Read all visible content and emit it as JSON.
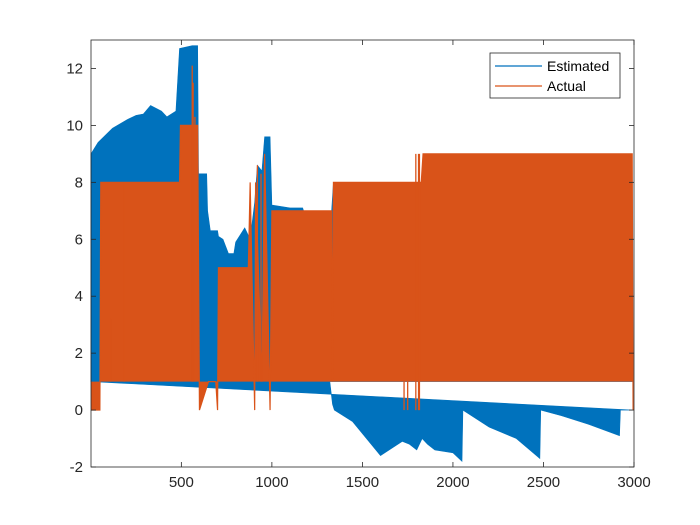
{
  "chart_data": {
    "type": "area",
    "title": "",
    "xlabel": "",
    "ylabel": "",
    "xlim": [
      1,
      3000
    ],
    "ylim": [
      -2,
      13
    ],
    "x_ticks": [
      500,
      1000,
      1500,
      2000,
      2500,
      3000
    ],
    "y_ticks": [
      -2,
      0,
      2,
      4,
      6,
      8,
      10,
      12
    ],
    "grid": false,
    "legend": {
      "position": "top-right"
    },
    "colors": {
      "estimated": "#0072BD",
      "actual": "#D95319",
      "axis": "#262626"
    },
    "series": [
      {
        "name": "Estimated",
        "baseline": [
          [
            1,
            1
          ],
          [
            2990,
            1
          ]
        ],
        "upper": [
          [
            1,
            9.0
          ],
          [
            40,
            9.4
          ],
          [
            120,
            9.9
          ],
          [
            200,
            10.2
          ],
          [
            250,
            10.35
          ],
          [
            290,
            10.4
          ],
          [
            330,
            10.7
          ],
          [
            390,
            10.5
          ],
          [
            420,
            10.3
          ],
          [
            470,
            10.5
          ],
          [
            490,
            12.7
          ],
          [
            560,
            12.8
          ],
          [
            590,
            12.8
          ],
          [
            595,
            8.3
          ],
          [
            640,
            8.3
          ],
          [
            645,
            7.0
          ],
          [
            660,
            6.3
          ],
          [
            700,
            6.3
          ],
          [
            705,
            6.1
          ],
          [
            730,
            6.0
          ],
          [
            760,
            5.5
          ],
          [
            790,
            5.5
          ],
          [
            800,
            5.9
          ],
          [
            850,
            6.4
          ],
          [
            880,
            6.0
          ],
          [
            905,
            7.3
          ],
          [
            920,
            8.6
          ],
          [
            945,
            8.4
          ],
          [
            960,
            9.6
          ],
          [
            990,
            9.6
          ],
          [
            1000,
            7.2
          ],
          [
            1100,
            7.1
          ],
          [
            1170,
            7.1
          ],
          [
            1175,
            7.0
          ],
          [
            1330,
            7.0
          ],
          [
            1340,
            8.0
          ],
          [
            2990,
            8.0
          ],
          [
            2991,
            1
          ]
        ],
        "lower": [
          [
            1,
            1
          ],
          [
            1320,
            1
          ],
          [
            1335,
            0.2
          ],
          [
            1345,
            0
          ],
          [
            1445,
            -0.4
          ],
          [
            1600,
            -1.6
          ],
          [
            1720,
            -1.1
          ],
          [
            1760,
            -1.2
          ],
          [
            1800,
            -1.4
          ],
          [
            1830,
            -1.0
          ],
          [
            1860,
            -1.2
          ],
          [
            1900,
            -1.4
          ],
          [
            2000,
            -1.5
          ],
          [
            2050,
            -1.8
          ],
          [
            2055,
            0
          ],
          [
            2200,
            -0.6
          ],
          [
            2350,
            -1.0
          ],
          [
            2480,
            -1.7
          ],
          [
            2485,
            0
          ],
          [
            2600,
            -0.2
          ],
          [
            2750,
            -0.5
          ],
          [
            2920,
            -0.9
          ],
          [
            2925,
            0
          ],
          [
            2990,
            0
          ]
        ]
      },
      {
        "name": "Actual",
        "steps": [
          [
            1,
            0
          ],
          [
            50,
            0
          ],
          [
            55,
            8
          ],
          [
            490,
            8
          ],
          [
            495,
            10
          ],
          [
            590,
            10
          ],
          [
            600,
            0
          ],
          [
            650,
            1
          ],
          [
            690,
            1
          ],
          [
            700,
            0
          ],
          [
            705,
            5
          ],
          [
            870,
            5
          ],
          [
            880,
            8
          ],
          [
            905,
            0
          ],
          [
            910,
            8
          ],
          [
            945,
            1
          ],
          [
            960,
            9
          ],
          [
            990,
            0
          ],
          [
            1000,
            7
          ],
          [
            1330,
            7
          ],
          [
            1335,
            1
          ],
          [
            1340,
            8
          ],
          [
            1825,
            8
          ],
          [
            1835,
            9
          ],
          [
            2990,
            9
          ],
          [
            2995,
            0
          ]
        ],
        "fill_base": 1,
        "spikes": [
          [
            110,
            1,
            3.2
          ],
          [
            185,
            1,
            8
          ],
          [
            560,
            1,
            12.1
          ],
          [
            565,
            1,
            11.5
          ],
          [
            575,
            1,
            10.3
          ],
          [
            920,
            1,
            8.6
          ],
          [
            940,
            1,
            8.3
          ],
          [
            1730,
            0,
            1
          ],
          [
            1750,
            0,
            1
          ],
          [
            1795,
            0,
            9
          ],
          [
            1810,
            0,
            9
          ],
          [
            1815,
            0,
            9
          ]
        ]
      }
    ]
  }
}
